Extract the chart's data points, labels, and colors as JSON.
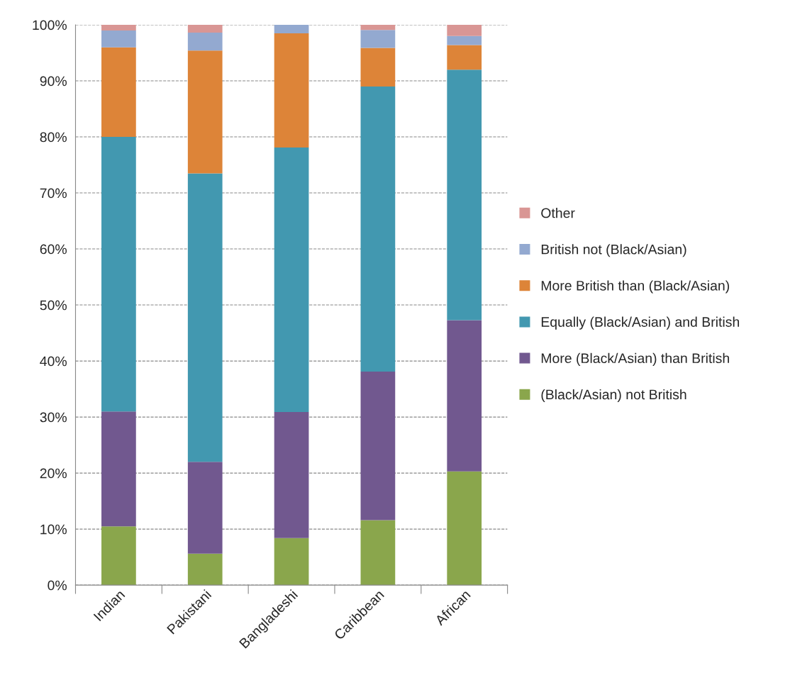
{
  "chart_data": {
    "type": "bar",
    "stacked": true,
    "categories": [
      "Indian",
      "Pakistani",
      "Bangladeshi",
      "Caribbean",
      "African"
    ],
    "series": [
      {
        "name": "(Black/Asian) not British",
        "color": "#8aa64c",
        "values": [
          10.5,
          5.6,
          8.4,
          11.6,
          20.3
        ]
      },
      {
        "name": "More (Black/Asian) than British",
        "color": "#71588f",
        "values": [
          20.5,
          16.4,
          22.5,
          26.5,
          27.0
        ]
      },
      {
        "name": "Equally (Black/Asian) and British",
        "color": "#4298b0",
        "values": [
          49.0,
          51.5,
          47.2,
          50.9,
          44.7
        ]
      },
      {
        "name": "More British than (Black/Asian)",
        "color": "#dd8438",
        "values": [
          16.0,
          21.9,
          20.4,
          6.9,
          4.4
        ]
      },
      {
        "name": "British not (Black/Asian)",
        "color": "#93a9d0",
        "values": [
          3.0,
          3.2,
          1.5,
          3.2,
          1.6
        ]
      },
      {
        "name": "Other",
        "color": "#d99694",
        "values": [
          1.0,
          1.4,
          null,
          0.9,
          2.0
        ]
      }
    ],
    "ylim": [
      0,
      100
    ],
    "yticks": [
      {
        "value": 0,
        "label": "0%"
      },
      {
        "value": 10,
        "label": "10%"
      },
      {
        "value": 20,
        "label": "20%"
      },
      {
        "value": 30,
        "label": "30%"
      },
      {
        "value": 40,
        "label": "40%"
      },
      {
        "value": 50,
        "label": "50%"
      },
      {
        "value": 60,
        "label": "60%"
      },
      {
        "value": 70,
        "label": "70%"
      },
      {
        "value": 80,
        "label": "80%"
      },
      {
        "value": 90,
        "label": "90%"
      },
      {
        "value": 100,
        "label": "100%"
      }
    ],
    "grid": "y",
    "legend": "right"
  }
}
